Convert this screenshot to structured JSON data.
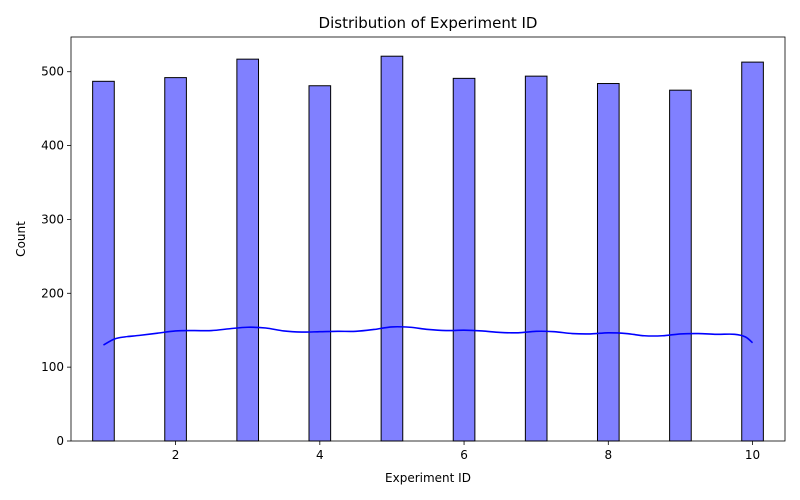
{
  "chart_data": {
    "type": "bar",
    "title": "Distribution of Experiment ID",
    "xlabel": "Experiment ID",
    "ylabel": "Count",
    "xlim": [
      0.55,
      10.45
    ],
    "ylim": [
      0,
      547
    ],
    "x_ticks": [
      2,
      4,
      6,
      8,
      10
    ],
    "y_ticks": [
      0,
      100,
      200,
      300,
      400,
      500
    ],
    "bin_width": 0.3,
    "bars": [
      {
        "x": 1,
        "value": 487
      },
      {
        "x": 2,
        "value": 492
      },
      {
        "x": 3,
        "value": 517
      },
      {
        "x": 4,
        "value": 481
      },
      {
        "x": 5,
        "value": 521
      },
      {
        "x": 6,
        "value": 491
      },
      {
        "x": 7,
        "value": 494
      },
      {
        "x": 8,
        "value": 484
      },
      {
        "x": 9,
        "value": 475
      },
      {
        "x": 10,
        "value": 513
      }
    ],
    "kde": {
      "x": [
        1.0,
        1.15,
        1.3,
        1.5,
        1.75,
        2.0,
        2.25,
        2.5,
        2.75,
        3.0,
        3.25,
        3.5,
        3.75,
        4.0,
        4.25,
        4.5,
        4.75,
        5.0,
        5.25,
        5.5,
        5.75,
        6.0,
        6.25,
        6.5,
        6.75,
        7.0,
        7.25,
        7.5,
        7.75,
        8.0,
        8.25,
        8.5,
        8.75,
        9.0,
        9.25,
        9.5,
        9.75,
        9.9,
        10.0
      ],
      "y": [
        130,
        138,
        141,
        143,
        146,
        149,
        149.5,
        149.5,
        152,
        154,
        153,
        149,
        147.5,
        148,
        148.5,
        148.5,
        151,
        154.5,
        154,
        151,
        149.5,
        150,
        149,
        147,
        146.5,
        148.5,
        148,
        145.5,
        145,
        146.5,
        145.5,
        142.5,
        142.5,
        145,
        145.5,
        144.5,
        144.5,
        141,
        133
      ]
    },
    "bar_color": "#8080ff",
    "bar_edge_color": "#000000",
    "kde_color": "#0000ff",
    "grid": false,
    "legend": false
  }
}
